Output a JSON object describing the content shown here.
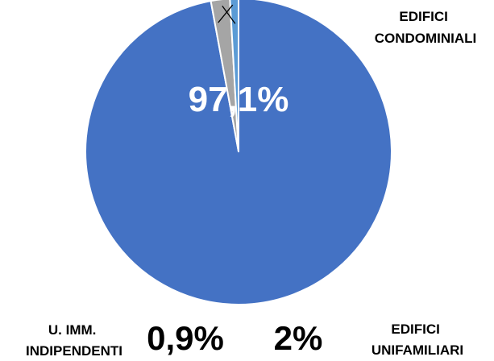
{
  "chart_data": {
    "type": "pie",
    "title": "",
    "slices": [
      {
        "label_lines": [
          "EDIFICI",
          "CONDOMINIALI"
        ],
        "value": 97.1,
        "value_label": "97,1%",
        "color": "#4472C4"
      },
      {
        "label_lines": [
          "EDIFICI",
          "UNIFAMILIARI"
        ],
        "value": 2,
        "value_label": "2%",
        "color": "#A5A5A5"
      },
      {
        "label_lines": [
          "U. IMM.",
          "INDIPENDENTI"
        ],
        "value": 0.9,
        "value_label": "0,9%",
        "color": "#5B9BD5"
      }
    ],
    "start_angle": "12 o'clock",
    "direction": "clockwise",
    "slice_border_color": "#FFFFFF",
    "leader_line_color": "#000000",
    "legend": "none"
  }
}
